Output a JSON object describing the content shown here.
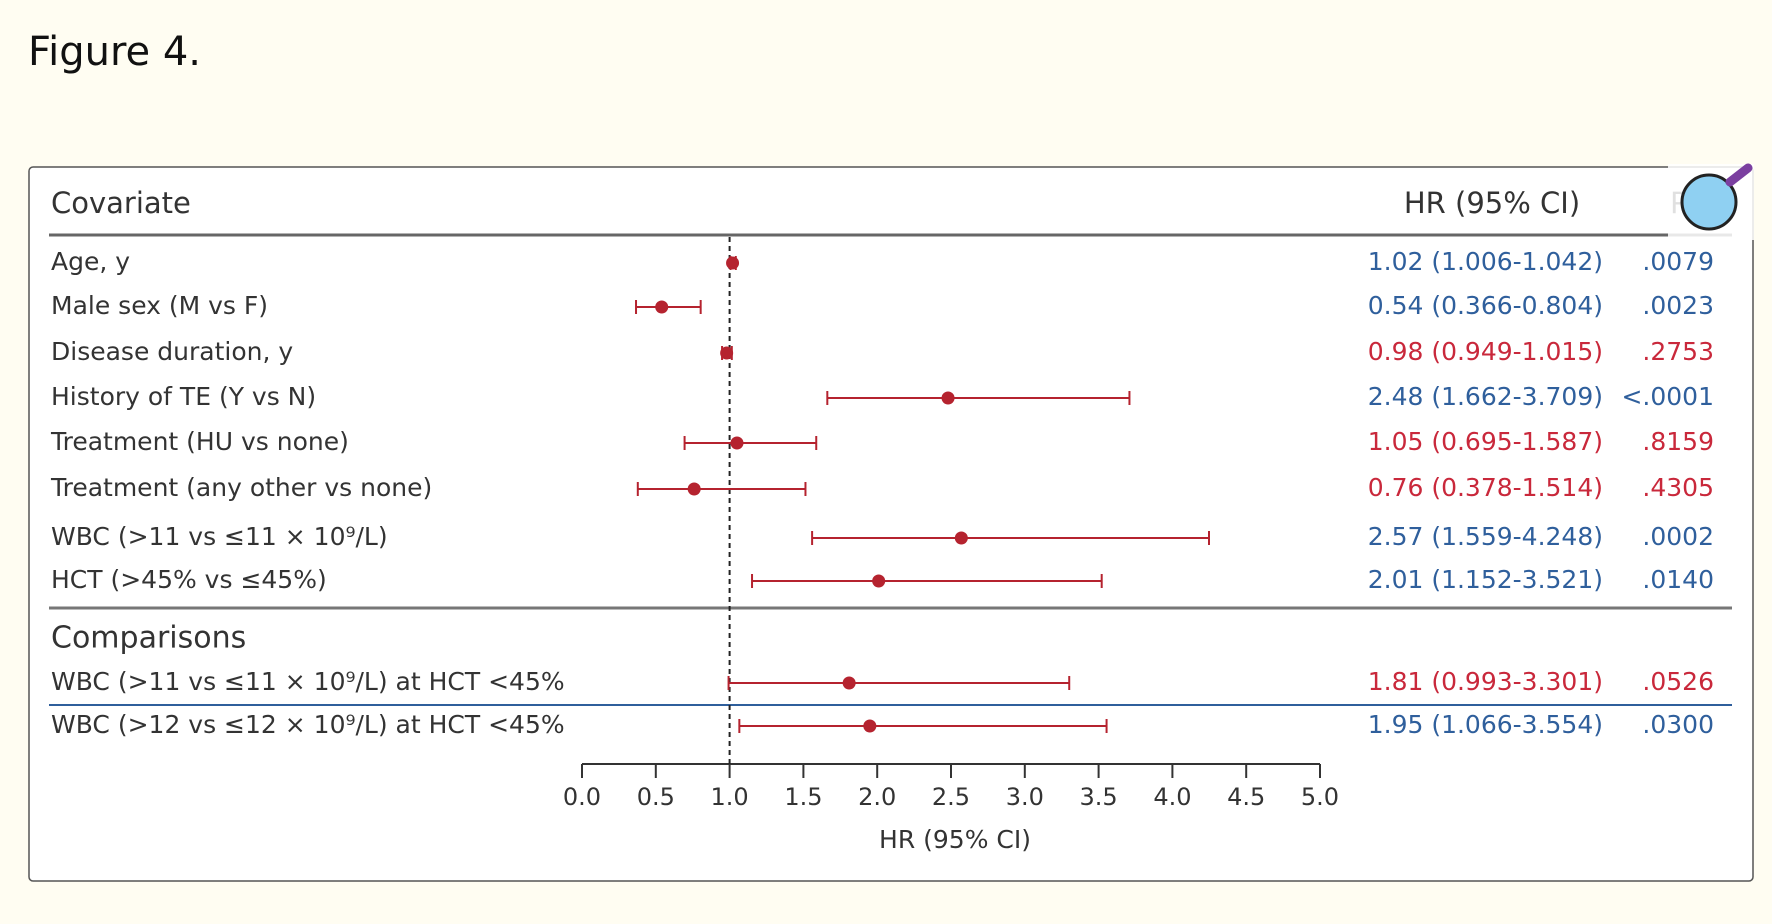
{
  "page_title": "Figure 4.",
  "chart_data": {
    "type": "forest",
    "columns": {
      "label": "Covariate",
      "hr": "HR (95% CI)",
      "p": "P"
    },
    "xlabel": "HR (95% CI)",
    "xlim": [
      0,
      5
    ],
    "xticks": [
      {
        "value": 0,
        "label": "0.0"
      },
      {
        "value": 0.5,
        "label": "0.5"
      },
      {
        "value": 1,
        "label": "1.0"
      },
      {
        "value": 1.5,
        "label": "1.5"
      },
      {
        "value": 2,
        "label": "2.0"
      },
      {
        "value": 2.5,
        "label": "2.5"
      },
      {
        "value": 3,
        "label": "3.0"
      },
      {
        "value": 3.5,
        "label": "3.5"
      },
      {
        "value": 4,
        "label": "4.0"
      },
      {
        "value": 4.5,
        "label": "4.5"
      },
      {
        "value": 5,
        "label": "5.0"
      }
    ],
    "reference_line": 1,
    "marker_color": "#b5232f",
    "rows": [
      {
        "label": "Age, y",
        "value": 1.02,
        "lower": 1.006,
        "upper": 1.042,
        "value_label": "1.02 (1.006-1.042)",
        "p": ".0079",
        "color": "#2f5f9c"
      },
      {
        "label": "Male sex (M vs F)",
        "value": 0.54,
        "lower": 0.366,
        "upper": 0.804,
        "value_label": "0.54 (0.366-0.804)",
        "p": ".0023",
        "color": "#2f5f9c"
      },
      {
        "label": "Disease duration, y",
        "value": 0.98,
        "lower": 0.949,
        "upper": 1.015,
        "value_label": "0.98 (0.949-1.015)",
        "p": ".2753",
        "color": "#c9283b"
      },
      {
        "label": "History of TE (Y vs N)",
        "value": 2.48,
        "lower": 1.662,
        "upper": 3.709,
        "value_label": "2.48 (1.662-3.709)",
        "p": "<.0001",
        "color": "#2f5f9c"
      },
      {
        "label": "Treatment (HU vs none)",
        "value": 1.05,
        "lower": 0.695,
        "upper": 1.587,
        "value_label": "1.05 (0.695-1.587)",
        "p": ".8159",
        "color": "#c9283b"
      },
      {
        "label": "Treatment (any other vs none)",
        "value": 0.76,
        "lower": 0.378,
        "upper": 1.514,
        "value_label": "0.76 (0.378-1.514)",
        "p": ".4305",
        "color": "#c9283b"
      },
      {
        "label": "WBC (>11 vs ≤11 × 10⁹/L)",
        "value": 2.57,
        "lower": 1.559,
        "upper": 4.248,
        "value_label": "2.57 (1.559-4.248)",
        "p": ".0002",
        "color": "#2f5f9c"
      },
      {
        "label": "HCT (>45% vs ≤45%)",
        "value": 2.01,
        "lower": 1.152,
        "upper": 3.521,
        "value_label": "2.01 (1.152-3.521)",
        "p": ".0140",
        "color": "#2f5f9c"
      }
    ],
    "comparisons_title": "Comparisons",
    "comparison_rows": [
      {
        "label": "WBC (>11 vs ≤11 × 10⁹/L) at HCT <45%",
        "value": 1.81,
        "lower": 0.993,
        "upper": 3.301,
        "value_label": "1.81 (0.993-3.301)",
        "p": ".0526",
        "color": "#c9283b"
      },
      {
        "label": "WBC (>12 vs ≤12 × 10⁹/L) at HCT <45%",
        "value": 1.95,
        "lower": 1.066,
        "upper": 3.554,
        "value_label": "1.95 (1.066-3.554)",
        "p": ".0300",
        "color": "#2f5f9c"
      }
    ]
  }
}
